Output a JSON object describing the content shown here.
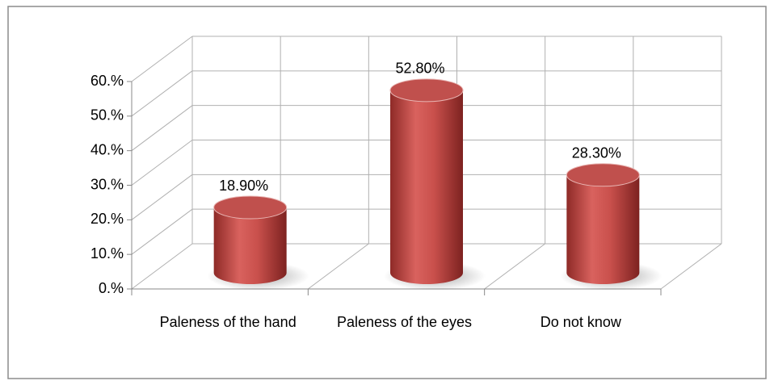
{
  "chart_data": {
    "type": "bar",
    "categories": [
      "Paleness of the hand",
      "Paleness of the eyes",
      "Do not know"
    ],
    "values": [
      18.9,
      52.8,
      28.3
    ],
    "value_labels": [
      "18.90%",
      "52.80%",
      "28.30%"
    ],
    "color": "#c0504d",
    "ylim": [
      0,
      60
    ],
    "yticks": [
      {
        "value": 0,
        "label": "0.%"
      },
      {
        "value": 10,
        "label": "10.%"
      },
      {
        "value": 20,
        "label": "20.%"
      },
      {
        "value": 30,
        "label": "30.%"
      },
      {
        "value": 40,
        "label": "40.%"
      },
      {
        "value": 50,
        "label": "50.%"
      },
      {
        "value": 60,
        "label": "60.%"
      }
    ],
    "grid": true
  }
}
